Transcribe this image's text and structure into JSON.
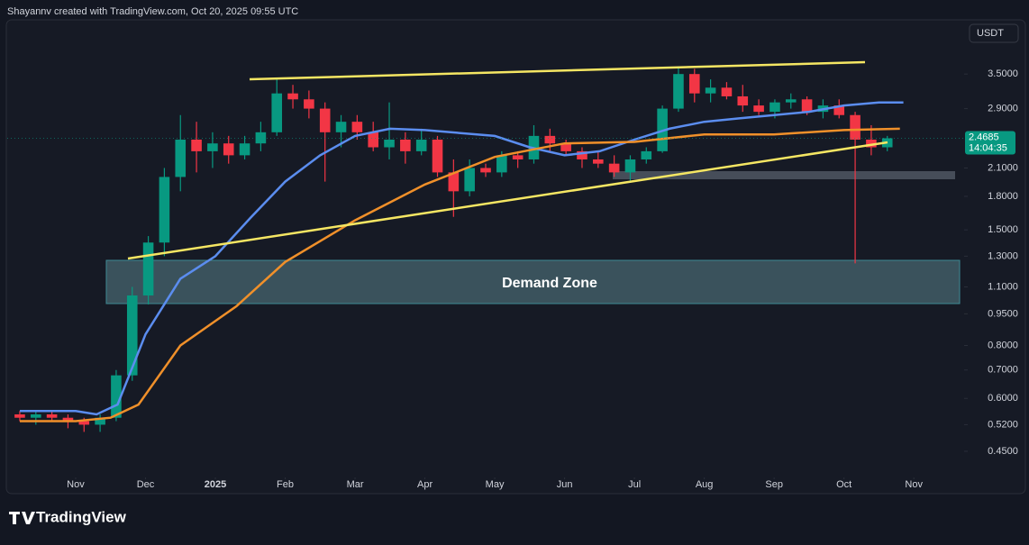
{
  "header": "Shayannv created with TradingView.com, Oct 20, 2025 09:55 UTC",
  "brand": "TradingView",
  "chart_data": {
    "type": "candlestick",
    "currency": "USDT",
    "annotation": "Demand Zone",
    "last_price": 2.4685,
    "countdown": "14:04:35",
    "log_scale": true,
    "up_color": "#089981",
    "down_color": "#f23645",
    "xlim": [
      -0.98,
      12.72
    ],
    "ylim": [
      0.4,
      4.7
    ],
    "xticks": [
      {
        "value": 0,
        "label": "Nov"
      },
      {
        "value": 1,
        "label": "Dec"
      },
      {
        "value": 2,
        "label": "2025"
      },
      {
        "value": 3,
        "label": "Feb"
      },
      {
        "value": 4,
        "label": "Mar"
      },
      {
        "value": 5,
        "label": "Apr"
      },
      {
        "value": 6,
        "label": "May"
      },
      {
        "value": 7,
        "label": "Jun"
      },
      {
        "value": 8,
        "label": "Jul"
      },
      {
        "value": 9,
        "label": "Aug"
      },
      {
        "value": 10,
        "label": "Sep"
      },
      {
        "value": 11,
        "label": "Oct"
      },
      {
        "value": 12,
        "label": "Nov"
      }
    ],
    "yticks": [
      {
        "value": 3.5,
        "label": "3.5000"
      },
      {
        "value": 2.9,
        "label": "2.9000"
      },
      {
        "value": 2.1,
        "label": "2.1000"
      },
      {
        "value": 1.8,
        "label": "1.8000"
      },
      {
        "value": 1.5,
        "label": "1.5000"
      },
      {
        "value": 1.3,
        "label": "1.3000"
      },
      {
        "value": 1.1,
        "label": "1.1000"
      },
      {
        "value": 0.95,
        "label": "0.9500"
      },
      {
        "value": 0.8,
        "label": "0.8000"
      },
      {
        "value": 0.7,
        "label": "0.7000"
      },
      {
        "value": 0.6,
        "label": "0.6000"
      },
      {
        "value": 0.52,
        "label": "0.5200"
      },
      {
        "value": 0.45,
        "label": "0.4500"
      }
    ],
    "x": [
      -0.8,
      -0.57,
      -0.34,
      -0.11,
      0.12,
      0.35,
      0.58,
      0.81,
      1.04,
      1.27,
      1.5,
      1.73,
      1.96,
      2.19,
      2.42,
      2.65,
      2.88,
      3.11,
      3.34,
      3.57,
      3.8,
      4.03,
      4.26,
      4.49,
      4.72,
      4.95,
      5.18,
      5.41,
      5.64,
      5.87,
      6.1,
      6.33,
      6.56,
      6.79,
      7.02,
      7.25,
      7.48,
      7.71,
      7.94,
      8.17,
      8.4,
      8.63,
      8.86,
      9.09,
      9.32,
      9.55,
      9.78,
      10.01,
      10.24,
      10.47,
      10.7,
      10.93,
      11.16,
      11.39,
      11.62
    ],
    "open": [
      0.55,
      0.54,
      0.55,
      0.54,
      0.53,
      0.52,
      0.54,
      0.68,
      1.05,
      1.4,
      2.0,
      2.45,
      2.3,
      2.4,
      2.25,
      2.4,
      2.55,
      3.15,
      3.05,
      2.9,
      2.55,
      2.7,
      2.55,
      2.35,
      2.45,
      2.3,
      2.45,
      2.05,
      1.85,
      2.1,
      2.05,
      2.25,
      2.2,
      2.5,
      2.4,
      2.3,
      2.2,
      2.15,
      2.05,
      2.2,
      2.3,
      2.9,
      3.5,
      3.15,
      3.25,
      3.1,
      2.95,
      2.85,
      3.0,
      3.05,
      2.85,
      2.95,
      2.8,
      2.45,
      2.35
    ],
    "high": [
      0.56,
      0.56,
      0.56,
      0.55,
      0.54,
      0.55,
      0.7,
      1.1,
      1.45,
      2.1,
      2.8,
      2.7,
      2.55,
      2.5,
      2.5,
      2.7,
      3.4,
      3.3,
      3.2,
      3.0,
      2.8,
      2.8,
      2.7,
      3.0,
      2.55,
      2.6,
      2.5,
      2.2,
      2.2,
      2.15,
      2.3,
      2.3,
      2.65,
      2.6,
      2.45,
      2.35,
      2.3,
      2.25,
      2.25,
      2.35,
      2.95,
      3.65,
      3.6,
      3.4,
      3.35,
      3.3,
      3.05,
      3.05,
      3.15,
      3.1,
      3.05,
      3.05,
      2.85,
      2.65,
      2.5
    ],
    "low": [
      0.53,
      0.52,
      0.53,
      0.51,
      0.5,
      0.5,
      0.53,
      0.66,
      1.0,
      1.3,
      1.85,
      2.05,
      2.1,
      2.15,
      2.2,
      2.3,
      2.5,
      2.9,
      2.75,
      1.95,
      2.35,
      2.45,
      2.3,
      2.2,
      2.15,
      2.25,
      2.0,
      1.61,
      1.8,
      2.0,
      2.0,
      2.1,
      2.15,
      2.3,
      2.25,
      2.1,
      2.1,
      2.0,
      1.95,
      2.15,
      2.28,
      2.85,
      3.0,
      3.0,
      3.05,
      2.85,
      2.8,
      2.75,
      2.9,
      2.8,
      2.75,
      2.75,
      1.25,
      2.25,
      2.3
    ],
    "close": [
      0.54,
      0.55,
      0.54,
      0.53,
      0.52,
      0.54,
      0.68,
      1.05,
      1.4,
      2.0,
      2.45,
      2.3,
      2.4,
      2.25,
      2.4,
      2.55,
      3.15,
      3.05,
      2.9,
      2.55,
      2.7,
      2.55,
      2.35,
      2.45,
      2.3,
      2.45,
      2.05,
      1.85,
      2.1,
      2.05,
      2.25,
      2.2,
      2.5,
      2.4,
      2.3,
      2.2,
      2.15,
      2.05,
      2.2,
      2.3,
      2.9,
      3.5,
      3.15,
      3.25,
      3.1,
      2.95,
      2.85,
      3.0,
      3.05,
      2.85,
      2.95,
      2.8,
      2.45,
      2.35,
      2.4685
    ],
    "lines": [
      {
        "color": "#5b8def",
        "x": [
          -0.8,
          0,
          0.3,
          0.6,
          1,
          1.5,
          2,
          2.5,
          3,
          3.5,
          4,
          4.5,
          5,
          6,
          6.5,
          7,
          7.5,
          8,
          8.5,
          9,
          9.5,
          10,
          10.5,
          11,
          11.5,
          11.85
        ],
        "values": [
          0.56,
          0.56,
          0.55,
          0.58,
          0.85,
          1.15,
          1.3,
          1.6,
          1.95,
          2.25,
          2.5,
          2.6,
          2.58,
          2.5,
          2.35,
          2.25,
          2.3,
          2.45,
          2.6,
          2.7,
          2.75,
          2.8,
          2.85,
          2.95,
          3.0,
          3.0
        ]
      },
      {
        "color": "#f0902a",
        "x": [
          -0.8,
          0,
          0.5,
          0.9,
          1.5,
          2.3,
          3,
          4,
          5,
          6,
          7,
          8,
          9,
          10,
          11,
          11.8
        ],
        "values": [
          0.53,
          0.53,
          0.54,
          0.58,
          0.8,
          0.99,
          1.26,
          1.58,
          1.92,
          2.23,
          2.4,
          2.42,
          2.52,
          2.52,
          2.58,
          2.6
        ]
      }
    ]
  }
}
